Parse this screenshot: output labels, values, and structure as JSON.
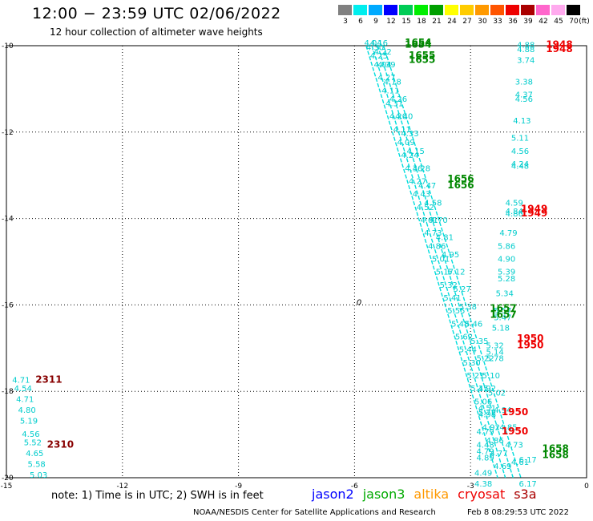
{
  "header": {
    "title": "12:00 − 23:59 UTC 02/06/2022",
    "subtitle": "12 hour collection of altimeter wave heights"
  },
  "colorbar": {
    "unit": "(ft)",
    "ticks": [
      "3",
      "6",
      "9",
      "12",
      "15",
      "18",
      "21",
      "24",
      "27",
      "30",
      "33",
      "36",
      "39",
      "42",
      "45",
      "70"
    ],
    "colors": [
      "#808080",
      "#00eeee",
      "#00aaff",
      "#0000ff",
      "#00cc55",
      "#00ee00",
      "#00a000",
      "#ffff00",
      "#ffcc00",
      "#ff9900",
      "#ff5500",
      "#ee0000",
      "#aa0000",
      "#ff66cc",
      "#ffaaee",
      "#000000"
    ]
  },
  "footer": {
    "note": "note: 1) Time is in UTC; 2) SWH is in feet",
    "credit": "NOAA/NESDIS Center for Satellite Applications and Research",
    "timestamp": "Feb  8 08:29:53 UTC 2022",
    "legend": [
      {
        "label": "jason2",
        "color": "#0000ff"
      },
      {
        "label": "jason3",
        "color": "#00aa00"
      },
      {
        "label": "altika",
        "color": "#ff9900"
      },
      {
        "label": "cryosat",
        "color": "#ee0000"
      },
      {
        "label": "s3a",
        "color": "#aa0000"
      }
    ]
  },
  "chart_data": {
    "type": "scatter",
    "xlim": [
      -15,
      0
    ],
    "ylim": [
      -20,
      -10
    ],
    "xticks": [
      "-15",
      "-12",
      "-9",
      "-6",
      "-3",
      "0"
    ],
    "yticks": [
      "-10",
      "-12",
      "-14",
      "-16",
      "-18",
      "-20"
    ],
    "grid": true,
    "swh_labels": [
      {
        "x": -5.75,
        "y": -10.0,
        "v": "4.04"
      },
      {
        "x": -5.7,
        "y": -10.1,
        "v": "4.30"
      },
      {
        "x": -5.6,
        "y": -10.3,
        "v": "4.25"
      },
      {
        "x": -5.5,
        "y": -10.5,
        "v": "4.04"
      },
      {
        "x": -5.4,
        "y": -10.8,
        "v": "4.27"
      },
      {
        "x": -5.3,
        "y": -11.1,
        "v": "4.11"
      },
      {
        "x": -5.2,
        "y": -11.4,
        "v": "4.31"
      },
      {
        "x": -5.1,
        "y": -11.7,
        "v": "4.20"
      },
      {
        "x": -5.0,
        "y": -12.0,
        "v": "4.11"
      },
      {
        "x": -4.9,
        "y": -12.3,
        "v": "4.09"
      },
      {
        "x": -4.8,
        "y": -12.6,
        "v": "4.24"
      },
      {
        "x": -4.7,
        "y": -12.9,
        "v": "4.36"
      },
      {
        "x": -4.6,
        "y": -13.2,
        "v": "4.27"
      },
      {
        "x": -4.5,
        "y": -13.5,
        "v": "4.43"
      },
      {
        "x": -4.4,
        "y": -13.8,
        "v": "4.52"
      },
      {
        "x": -4.3,
        "y": -14.1,
        "v": "4.61"
      },
      {
        "x": -4.2,
        "y": -14.4,
        "v": "4.73"
      },
      {
        "x": -4.1,
        "y": -14.7,
        "v": "4.86"
      },
      {
        "x": -4.0,
        "y": -15.0,
        "v": "5.01"
      },
      {
        "x": -3.9,
        "y": -15.3,
        "v": "5.17"
      },
      {
        "x": -3.8,
        "y": -15.6,
        "v": "5.32"
      },
      {
        "x": -3.7,
        "y": -15.9,
        "v": "5.41"
      },
      {
        "x": -3.6,
        "y": -16.2,
        "v": "5.55"
      },
      {
        "x": -3.5,
        "y": -16.5,
        "v": "5.48"
      },
      {
        "x": -3.4,
        "y": -16.8,
        "v": "5.62"
      },
      {
        "x": -3.3,
        "y": -17.1,
        "v": "5.44"
      },
      {
        "x": -3.2,
        "y": -17.4,
        "v": "5.30"
      },
      {
        "x": -3.1,
        "y": -17.7,
        "v": "5.21"
      },
      {
        "x": -3.0,
        "y": -18.0,
        "v": "5.15"
      },
      {
        "x": -2.9,
        "y": -18.3,
        "v": "5.06"
      },
      {
        "x": -2.8,
        "y": -18.6,
        "v": "4.98"
      },
      {
        "x": -2.7,
        "y": -18.9,
        "v": "4.92"
      },
      {
        "x": -2.6,
        "y": -19.2,
        "v": "4.86"
      },
      {
        "x": -2.5,
        "y": -19.5,
        "v": "4.77"
      },
      {
        "x": -2.4,
        "y": -19.8,
        "v": "4.69"
      },
      {
        "x": -5.6,
        "y": -10.0,
        "v": "4.16"
      },
      {
        "x": -5.5,
        "y": -10.2,
        "v": "4.22"
      },
      {
        "x": -5.4,
        "y": -10.5,
        "v": "4.39"
      },
      {
        "x": -5.25,
        "y": -10.9,
        "v": "4.18"
      },
      {
        "x": -5.1,
        "y": -11.3,
        "v": "4.26"
      },
      {
        "x": -4.95,
        "y": -11.7,
        "v": "4.40"
      },
      {
        "x": -4.8,
        "y": -12.1,
        "v": "4.33"
      },
      {
        "x": -4.65,
        "y": -12.5,
        "v": "4.15"
      },
      {
        "x": -4.5,
        "y": -12.9,
        "v": "4.28"
      },
      {
        "x": -4.35,
        "y": -13.3,
        "v": "4.47"
      },
      {
        "x": -4.2,
        "y": -13.7,
        "v": "4.58"
      },
      {
        "x": -4.05,
        "y": -14.1,
        "v": "4.70"
      },
      {
        "x": -3.9,
        "y": -14.5,
        "v": "4.81"
      },
      {
        "x": -3.75,
        "y": -14.9,
        "v": "4.95"
      },
      {
        "x": -3.6,
        "y": -15.3,
        "v": "5.12"
      },
      {
        "x": -3.45,
        "y": -15.7,
        "v": "5.27"
      },
      {
        "x": -3.3,
        "y": -16.1,
        "v": "5.38"
      },
      {
        "x": -3.15,
        "y": -16.5,
        "v": "5.46"
      },
      {
        "x": -3.0,
        "y": -16.9,
        "v": "5.35"
      },
      {
        "x": -2.85,
        "y": -17.3,
        "v": "5.22"
      },
      {
        "x": -2.7,
        "y": -17.7,
        "v": "5.10"
      },
      {
        "x": -2.55,
        "y": -18.1,
        "v": "5.02"
      },
      {
        "x": -2.4,
        "y": -18.5,
        "v": "4.94"
      },
      {
        "x": -2.25,
        "y": -18.9,
        "v": "4.85"
      },
      {
        "x": -2.1,
        "y": -19.3,
        "v": "4.73"
      },
      {
        "x": -1.95,
        "y": -19.7,
        "v": "4.61"
      },
      {
        "x": -1.8,
        "y": -10.05,
        "v": "4.88"
      },
      {
        "x": -1.8,
        "y": -10.15,
        "v": "4.88"
      },
      {
        "x": -1.8,
        "y": -10.4,
        "v": "3.74"
      },
      {
        "x": -1.85,
        "y": -10.9,
        "v": "3.38"
      },
      {
        "x": -1.85,
        "y": -11.2,
        "v": "4.37"
      },
      {
        "x": -1.85,
        "y": -11.3,
        "v": "4.56"
      },
      {
        "x": -1.9,
        "y": -11.8,
        "v": "4.13"
      },
      {
        "x": -1.95,
        "y": -12.2,
        "v": "5.11"
      },
      {
        "x": -1.95,
        "y": -12.5,
        "v": "4.56"
      },
      {
        "x": -1.95,
        "y": -12.8,
        "v": "4.24"
      },
      {
        "x": -1.95,
        "y": -12.85,
        "v": "4.48"
      },
      {
        "x": -2.1,
        "y": -13.7,
        "v": "4.59"
      },
      {
        "x": -2.1,
        "y": -13.9,
        "v": "4.84"
      },
      {
        "x": -2.1,
        "y": -13.95,
        "v": "4.86"
      },
      {
        "x": -2.25,
        "y": -14.4,
        "v": "4.79"
      },
      {
        "x": -2.3,
        "y": -14.7,
        "v": "5.86"
      },
      {
        "x": -2.3,
        "y": -15.0,
        "v": "4.90"
      },
      {
        "x": -2.3,
        "y": -15.3,
        "v": "5.39"
      },
      {
        "x": -2.3,
        "y": -15.45,
        "v": "5.28"
      },
      {
        "x": -2.35,
        "y": -15.8,
        "v": "5.34"
      },
      {
        "x": -2.4,
        "y": -16.2,
        "v": "5.57"
      },
      {
        "x": -2.4,
        "y": -16.35,
        "v": "5.47"
      },
      {
        "x": -2.45,
        "y": -16.6,
        "v": "5.18"
      },
      {
        "x": -2.6,
        "y": -17.0,
        "v": "5.32"
      },
      {
        "x": -2.6,
        "y": -17.15,
        "v": "5.14"
      },
      {
        "x": -2.6,
        "y": -17.3,
        "v": "5.78"
      },
      {
        "x": -2.8,
        "y": -18.0,
        "v": "4.92"
      },
      {
        "x": -2.8,
        "y": -18.45,
        "v": "4.51"
      },
      {
        "x": -2.8,
        "y": -18.55,
        "v": "5.72"
      },
      {
        "x": -2.85,
        "y": -19.0,
        "v": "4.79"
      },
      {
        "x": -2.85,
        "y": -19.3,
        "v": "4.48"
      },
      {
        "x": -2.85,
        "y": -19.45,
        "v": "4.79"
      },
      {
        "x": -2.85,
        "y": -19.6,
        "v": "4.89"
      },
      {
        "x": -2.9,
        "y": -19.95,
        "v": "4.49"
      },
      {
        "x": -2.9,
        "y": -20.2,
        "v": "4.38"
      },
      {
        "x": -1.75,
        "y": -20.2,
        "v": "6.17"
      },
      {
        "x": -1.75,
        "y": -19.65,
        "v": "6.17"
      },
      {
        "x": -14.85,
        "y": -17.8,
        "v": "4.71"
      },
      {
        "x": -14.8,
        "y": -18.0,
        "v": "4.54"
      },
      {
        "x": -14.75,
        "y": -18.25,
        "v": "4.71"
      },
      {
        "x": -14.7,
        "y": -18.5,
        "v": "4.80"
      },
      {
        "x": -14.65,
        "y": -18.75,
        "v": "5.19"
      },
      {
        "x": -14.6,
        "y": -19.05,
        "v": "4.56"
      },
      {
        "x": -14.55,
        "y": -19.25,
        "v": "5.52"
      },
      {
        "x": -14.5,
        "y": -19.5,
        "v": "4.65"
      },
      {
        "x": -14.45,
        "y": -19.75,
        "v": "5.58"
      },
      {
        "x": -14.4,
        "y": -20.0,
        "v": "5.03"
      }
    ],
    "time_labels": [
      {
        "x": -4.7,
        "y": -10.0,
        "v": "1654",
        "sat": "jason3"
      },
      {
        "x": -4.7,
        "y": -10.05,
        "v": "1654",
        "sat": "jason3"
      },
      {
        "x": -4.6,
        "y": -10.3,
        "v": "1655",
        "sat": "jason3"
      },
      {
        "x": -4.6,
        "y": -10.4,
        "v": "1655",
        "sat": "jason3"
      },
      {
        "x": -3.6,
        "y": -13.15,
        "v": "1656",
        "sat": "jason3"
      },
      {
        "x": -3.6,
        "y": -13.3,
        "v": "1656",
        "sat": "jason3"
      },
      {
        "x": -2.5,
        "y": -16.15,
        "v": "1657",
        "sat": "jason3"
      },
      {
        "x": -2.5,
        "y": -16.3,
        "v": "1657",
        "sat": "jason3"
      },
      {
        "x": -1.15,
        "y": -19.4,
        "v": "1658",
        "sat": "jason3"
      },
      {
        "x": -1.15,
        "y": -19.55,
        "v": "1658",
        "sat": "jason3"
      },
      {
        "x": -1.05,
        "y": -10.05,
        "v": "1948",
        "sat": "cryosat"
      },
      {
        "x": -1.05,
        "y": -10.15,
        "v": "1948",
        "sat": "cryosat"
      },
      {
        "x": -1.7,
        "y": -13.85,
        "v": "1949",
        "sat": "cryosat"
      },
      {
        "x": -1.7,
        "y": -13.95,
        "v": "1949",
        "sat": "cryosat"
      },
      {
        "x": -1.8,
        "y": -16.85,
        "v": "1950",
        "sat": "cryosat"
      },
      {
        "x": -1.8,
        "y": -17.0,
        "v": "1950",
        "sat": "cryosat"
      },
      {
        "x": -2.2,
        "y": -18.55,
        "v": "1950",
        "sat": "cryosat"
      },
      {
        "x": -2.2,
        "y": -19.0,
        "v": "1950",
        "sat": "cryosat"
      },
      {
        "x": -14.25,
        "y": -17.8,
        "v": "2311",
        "sat": "s3a"
      },
      {
        "x": -13.95,
        "y": -19.3,
        "v": "2310",
        "sat": "s3a"
      }
    ],
    "tracks": [
      {
        "sat": "altika",
        "points": [
          [
            -5.7,
            -10.0
          ],
          [
            -2.3,
            -20.0
          ]
        ]
      },
      {
        "sat": "altika",
        "points": [
          [
            -5.55,
            -10.0
          ],
          [
            -2.1,
            -20.0
          ]
        ]
      },
      {
        "sat": "altika",
        "points": [
          [
            -5.4,
            -10.0
          ],
          [
            -1.9,
            -20.0
          ]
        ]
      },
      {
        "sat": "altika",
        "points": [
          [
            -5.25,
            -10.0
          ],
          [
            -1.7,
            -20.0
          ]
        ]
      }
    ],
    "contour": {
      "x": -5.95,
      "y": -16.0,
      "v": "0"
    }
  }
}
